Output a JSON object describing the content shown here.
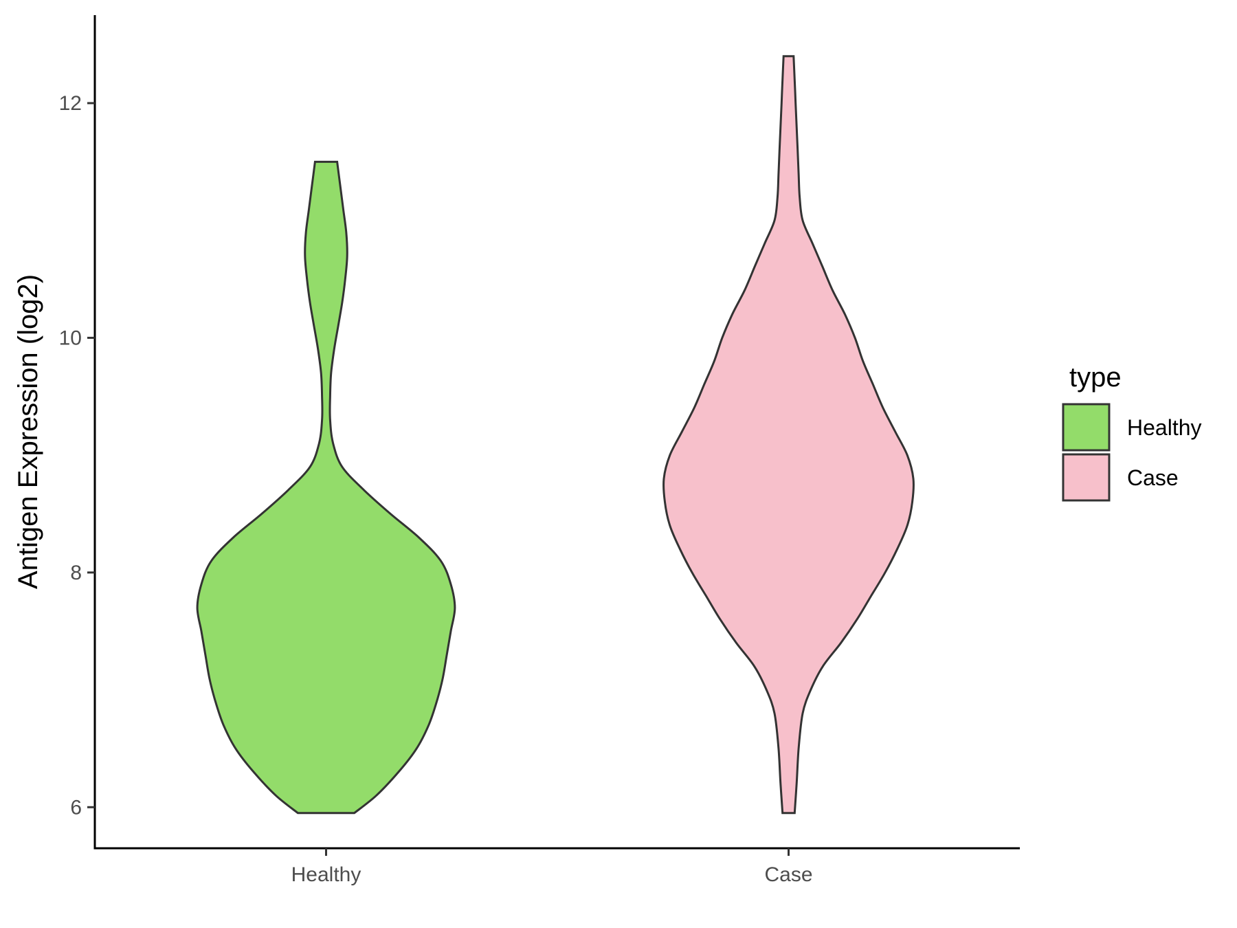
{
  "chart_data": {
    "type": "violin",
    "xlabel": "",
    "ylabel": "Antigen Expression (log2)",
    "ylim": [
      5.65,
      12.75
    ],
    "yticks": [
      6,
      8,
      10,
      12
    ],
    "categories": [
      "Healthy",
      "Case"
    ],
    "legend": {
      "title": "type",
      "position": "right",
      "entries": [
        {
          "label": "Healthy",
          "color": "#93DC6A"
        },
        {
          "label": "Case",
          "color": "#F7C0CB"
        }
      ]
    },
    "grid": false,
    "series": [
      {
        "category": "Healthy",
        "color": "#93DC6A",
        "range": [
          5.95,
          11.5
        ],
        "density": [
          [
            5.95,
            0.14
          ],
          [
            6.1,
            0.25
          ],
          [
            6.3,
            0.36
          ],
          [
            6.5,
            0.45
          ],
          [
            6.7,
            0.51
          ],
          [
            6.9,
            0.55
          ],
          [
            7.1,
            0.58
          ],
          [
            7.3,
            0.6
          ],
          [
            7.5,
            0.62
          ],
          [
            7.7,
            0.64
          ],
          [
            7.9,
            0.62
          ],
          [
            8.1,
            0.57
          ],
          [
            8.3,
            0.46
          ],
          [
            8.5,
            0.32
          ],
          [
            8.7,
            0.19
          ],
          [
            8.9,
            0.08
          ],
          [
            9.1,
            0.035
          ],
          [
            9.3,
            0.02
          ],
          [
            9.5,
            0.02
          ],
          [
            9.7,
            0.025
          ],
          [
            9.9,
            0.04
          ],
          [
            10.1,
            0.06
          ],
          [
            10.3,
            0.08
          ],
          [
            10.5,
            0.095
          ],
          [
            10.7,
            0.105
          ],
          [
            10.9,
            0.1
          ],
          [
            11.1,
            0.085
          ],
          [
            11.3,
            0.07
          ],
          [
            11.5,
            0.055
          ]
        ]
      },
      {
        "category": "Case",
        "color": "#F7C0CB",
        "range": [
          5.95,
          12.4
        ],
        "density": [
          [
            5.95,
            0.03
          ],
          [
            6.2,
            0.04
          ],
          [
            6.5,
            0.05
          ],
          [
            6.8,
            0.07
          ],
          [
            7.0,
            0.11
          ],
          [
            7.2,
            0.17
          ],
          [
            7.4,
            0.26
          ],
          [
            7.6,
            0.34
          ],
          [
            7.8,
            0.41
          ],
          [
            8.0,
            0.48
          ],
          [
            8.2,
            0.54
          ],
          [
            8.4,
            0.59
          ],
          [
            8.6,
            0.615
          ],
          [
            8.8,
            0.62
          ],
          [
            9.0,
            0.59
          ],
          [
            9.2,
            0.53
          ],
          [
            9.4,
            0.47
          ],
          [
            9.6,
            0.42
          ],
          [
            9.8,
            0.37
          ],
          [
            10.0,
            0.33
          ],
          [
            10.2,
            0.28
          ],
          [
            10.4,
            0.22
          ],
          [
            10.6,
            0.17
          ],
          [
            10.8,
            0.12
          ],
          [
            11.0,
            0.07
          ],
          [
            11.2,
            0.055
          ],
          [
            11.4,
            0.05
          ],
          [
            11.6,
            0.045
          ],
          [
            11.8,
            0.04
          ],
          [
            12.0,
            0.035
          ],
          [
            12.2,
            0.03
          ],
          [
            12.4,
            0.025
          ]
        ]
      }
    ]
  }
}
